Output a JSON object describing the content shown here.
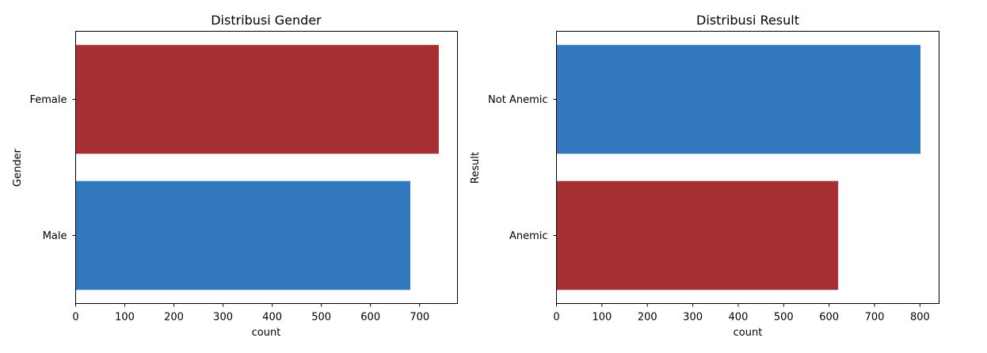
{
  "chart_data": [
    {
      "type": "bar",
      "orientation": "horizontal",
      "title": "Distribusi Gender",
      "xlabel": "count",
      "ylabel": "Gender",
      "categories": [
        "Female",
        "Male"
      ],
      "values": [
        739,
        681
      ],
      "bar_colors": [
        "#a52f31",
        "#3178be"
      ],
      "xlim": [
        0,
        777
      ],
      "xticks": [
        0,
        100,
        200,
        300,
        400,
        500,
        600,
        700
      ],
      "grid": false,
      "legend": "none"
    },
    {
      "type": "bar",
      "orientation": "horizontal",
      "title": "Distribusi Result",
      "xlabel": "count",
      "ylabel": "Result",
      "categories": [
        "Not Anemic",
        "Anemic"
      ],
      "values": [
        801,
        620
      ],
      "bar_colors": [
        "#3178be",
        "#a52f31"
      ],
      "xlim": [
        0,
        842
      ],
      "xticks": [
        0,
        100,
        200,
        300,
        400,
        500,
        600,
        700,
        800
      ],
      "grid": false,
      "legend": "none"
    }
  ]
}
